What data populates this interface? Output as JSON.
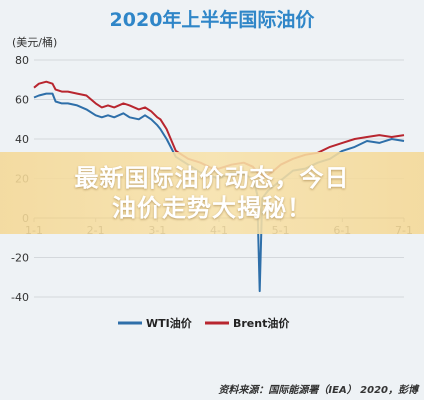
{
  "chart_data": {
    "type": "line",
    "title": "2020年上半年国际油价",
    "ylabel": "(美元/桶)",
    "xlabel": "",
    "ylim": [
      -40,
      80
    ],
    "yticks": [
      -40,
      -20,
      0,
      20,
      40,
      60,
      80
    ],
    "xlim": [
      0,
      6
    ],
    "x_ticks": [
      {
        "x": 0,
        "label": "1-1"
      },
      {
        "x": 1,
        "label": "2-1"
      },
      {
        "x": 2,
        "label": "3-1"
      },
      {
        "x": 3,
        "label": "4-1"
      },
      {
        "x": 4,
        "label": "5-1"
      },
      {
        "x": 5,
        "label": "6-1"
      },
      {
        "x": 6,
        "label": "7-1"
      }
    ],
    "grid": "horizontal",
    "legend": "bottom",
    "series": [
      {
        "name": "WTI油价",
        "color": "#2e6fa9",
        "x": [
          0,
          0.08,
          0.2,
          0.3,
          0.35,
          0.45,
          0.55,
          0.7,
          0.85,
          1.0,
          1.1,
          1.2,
          1.3,
          1.45,
          1.55,
          1.7,
          1.8,
          1.9,
          2.0,
          2.05,
          2.15,
          2.3,
          2.5,
          2.7,
          2.9,
          3.0,
          3.2,
          3.4,
          3.55,
          3.62,
          3.66,
          3.7,
          3.8,
          4.0,
          4.2,
          4.4,
          4.6,
          4.8,
          5.0,
          5.2,
          5.4,
          5.6,
          5.8,
          6.0
        ],
        "values": [
          61,
          62,
          63,
          63,
          59,
          58,
          58,
          57,
          55,
          52,
          51,
          52,
          51,
          53,
          51,
          50,
          52,
          50,
          47,
          45,
          40,
          31,
          27,
          23,
          21,
          20,
          23,
          22,
          20,
          12,
          -37,
          10,
          14,
          19,
          24,
          25,
          28,
          30,
          34,
          36,
          39,
          38,
          40,
          39
        ]
      },
      {
        "name": "Brent油价",
        "color": "#b8262f",
        "x": [
          0,
          0.08,
          0.2,
          0.3,
          0.35,
          0.45,
          0.55,
          0.7,
          0.85,
          1.0,
          1.1,
          1.2,
          1.3,
          1.45,
          1.55,
          1.7,
          1.8,
          1.9,
          2.0,
          2.05,
          2.15,
          2.3,
          2.5,
          2.7,
          2.9,
          3.0,
          3.2,
          3.4,
          3.55,
          3.65,
          3.75,
          3.85,
          4.0,
          4.2,
          4.4,
          4.6,
          4.8,
          5.0,
          5.2,
          5.4,
          5.6,
          5.8,
          6.0
        ],
        "values": [
          66,
          68,
          69,
          68,
          65,
          64,
          64,
          63,
          62,
          58,
          56,
          57,
          56,
          58,
          57,
          55,
          56,
          54,
          51,
          50,
          45,
          34,
          30,
          28,
          25,
          25,
          27,
          28,
          26,
          22,
          21,
          23,
          27,
          30,
          32,
          33,
          36,
          38,
          40,
          41,
          42,
          41,
          42
        ]
      }
    ]
  },
  "banner": {
    "line1": "最新国际油价动态，今日",
    "line2": "油价走势大揭秘！"
  },
  "source": "资料来源：国际能源署（IEA） 2020，彭博"
}
